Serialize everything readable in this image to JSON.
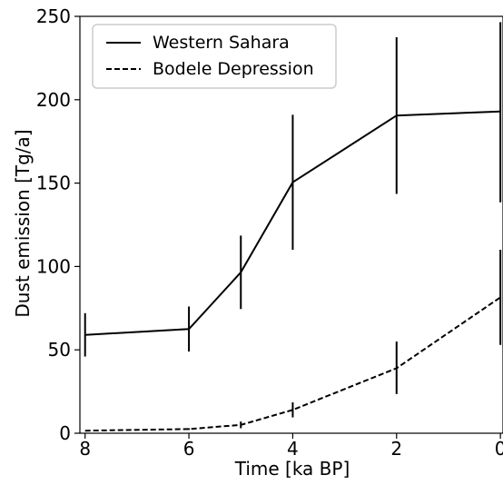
{
  "chart_data": {
    "type": "line",
    "xlabel": "Time [ka BP]",
    "ylabel": "Dust emission [Tg/a]",
    "xlim": [
      8.1,
      -0.05
    ],
    "ylim": [
      0,
      250
    ],
    "x_reversed": true,
    "xticks": [
      8,
      6,
      4,
      2,
      0
    ],
    "yticks": [
      0,
      50,
      100,
      150,
      200,
      250
    ],
    "grid": false,
    "legend_position": "top-left",
    "series": [
      {
        "name": "Western Sahara",
        "linestyle": "solid",
        "color": "#000000",
        "x": [
          8,
          6,
          5,
          4,
          2,
          0
        ],
        "y": [
          59,
          62.5,
          96.5,
          150.5,
          190.5,
          193
        ],
        "err_low": [
          46,
          49,
          74.5,
          110,
          143.5,
          138.5
        ],
        "err_high": [
          72,
          76,
          118.5,
          191,
          237.5,
          246.5
        ]
      },
      {
        "name": "Bodele Depression",
        "linestyle": "dashed",
        "color": "#000000",
        "x": [
          8,
          6,
          5,
          4,
          2,
          0
        ],
        "y": [
          1.5,
          2.5,
          5,
          14,
          39,
          81.5
        ],
        "err_low": [
          1.5,
          2,
          3,
          9.5,
          23.5,
          53
        ],
        "err_high": [
          1.5,
          3,
          7,
          18.5,
          55,
          110
        ]
      }
    ]
  }
}
